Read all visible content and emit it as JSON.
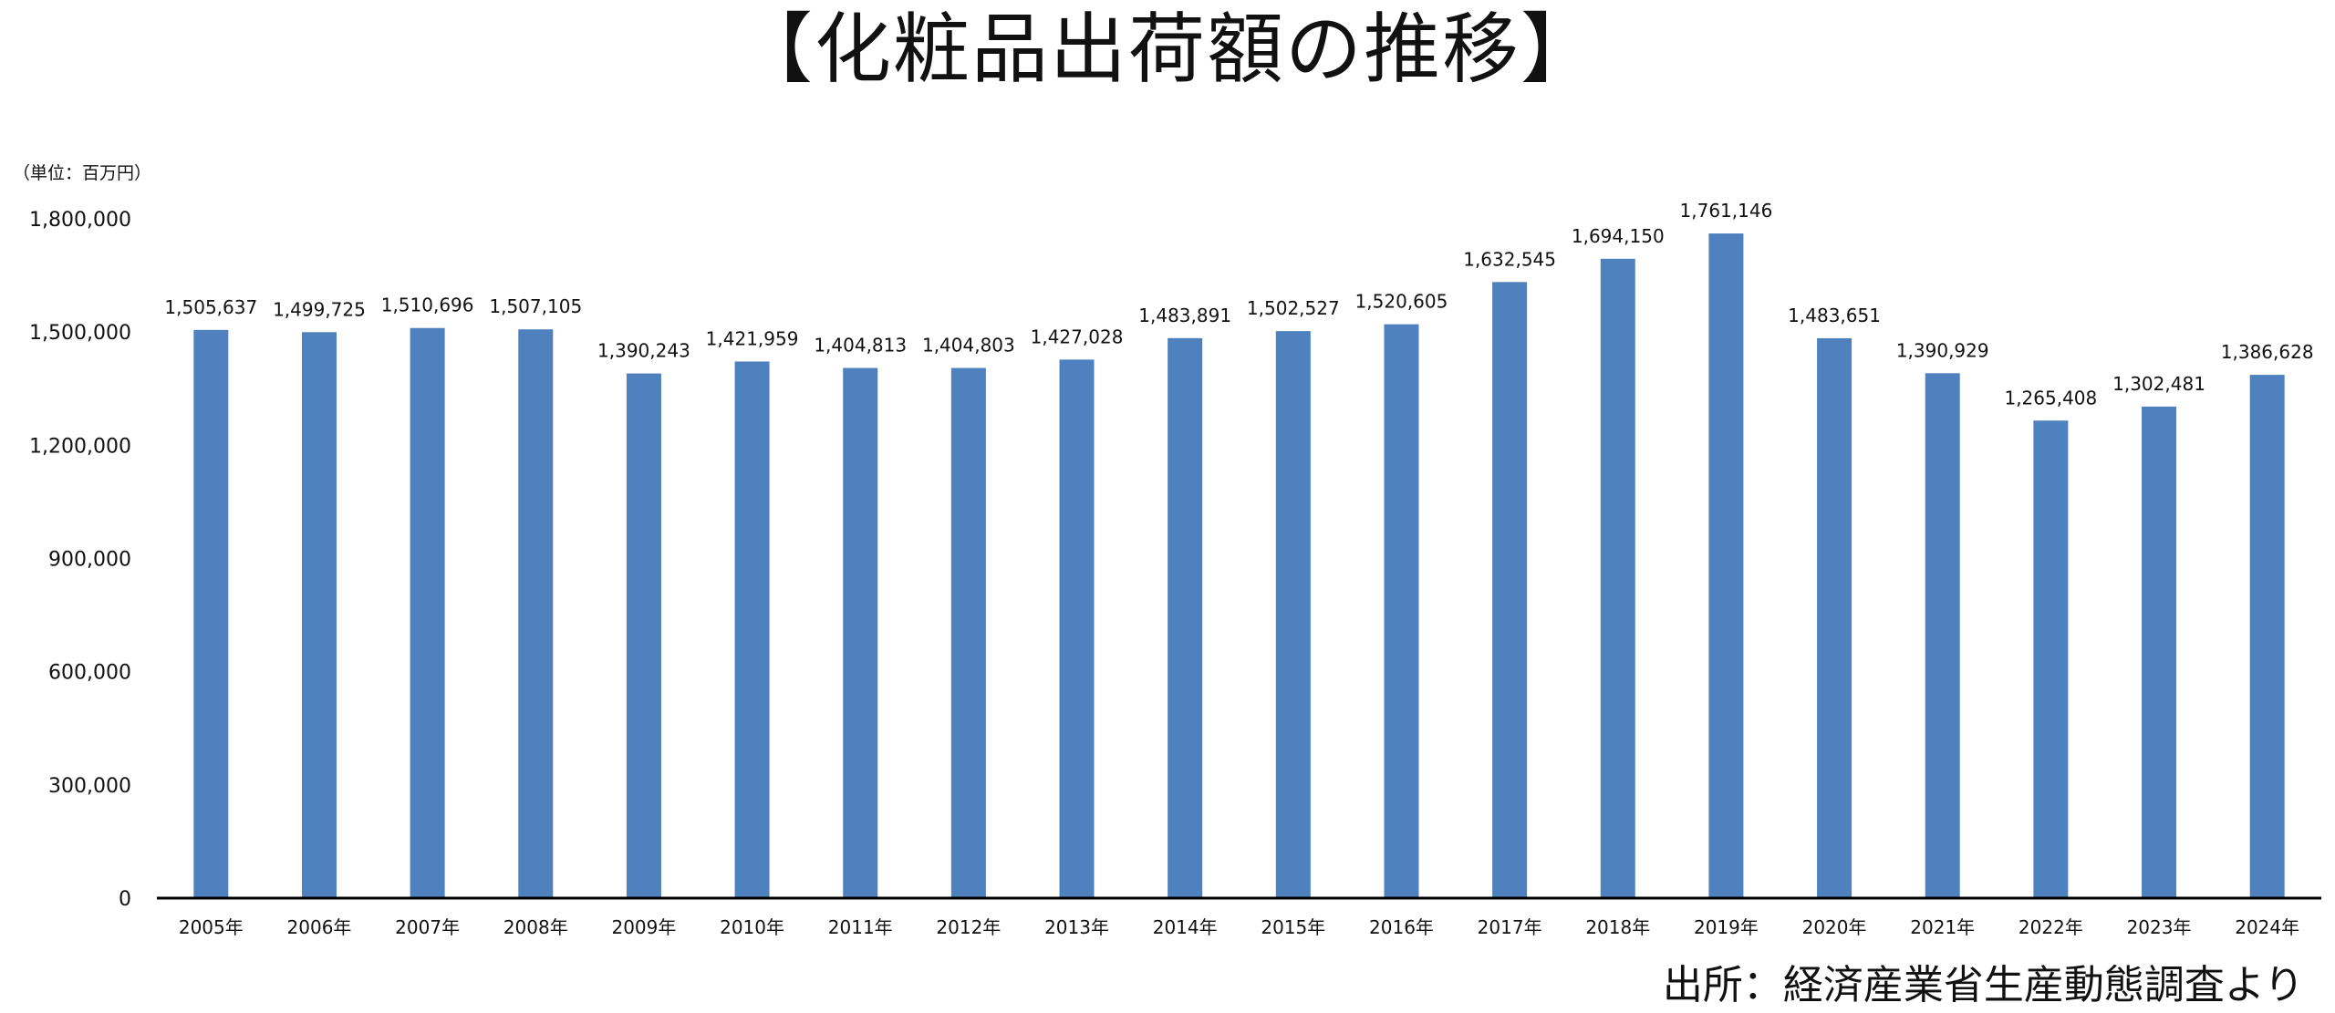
{
  "chart_data": {
    "type": "bar",
    "title": "【化粧品出荷額の推移】",
    "unit_label": "（単位：百万円）",
    "source": "出所：経済産業省生産動態調査より",
    "xlabel": "",
    "ylabel": "",
    "categories": [
      "2005年",
      "2006年",
      "2007年",
      "2008年",
      "2009年",
      "2010年",
      "2011年",
      "2012年",
      "2013年",
      "2014年",
      "2015年",
      "2016年",
      "2017年",
      "2018年",
      "2019年",
      "2020年",
      "2021年",
      "2022年",
      "2023年",
      "2024年"
    ],
    "values": [
      1505637,
      1499725,
      1510696,
      1507105,
      1390243,
      1421959,
      1404813,
      1404803,
      1427028,
      1483891,
      1502527,
      1520605,
      1632545,
      1694150,
      1761146,
      1483651,
      1390929,
      1265408,
      1302481,
      1386628
    ],
    "value_labels": [
      "1,505,637",
      "1,499,725",
      "1,510,696",
      "1,507,105",
      "1,390,243",
      "1,421,959",
      "1,404,813",
      "1,404,803",
      "1,427,028",
      "1,483,891",
      "1,502,527",
      "1,520,605",
      "1,632,545",
      "1,694,150",
      "1,761,146",
      "1,483,651",
      "1,390,929",
      "1,265,408",
      "1,302,481",
      "1,386,628"
    ],
    "y_ticks": [
      0,
      300000,
      600000,
      900000,
      1200000,
      1500000,
      1800000
    ],
    "y_tick_labels": [
      "0",
      "300,000",
      "600,000",
      "900,000",
      "1,200,000",
      "1,500,000",
      "1,800,000"
    ],
    "ylim": [
      0,
      1800000
    ],
    "grid": false,
    "legend": "none",
    "bar_color": "#4e81bd",
    "axis_color": "#000000"
  }
}
